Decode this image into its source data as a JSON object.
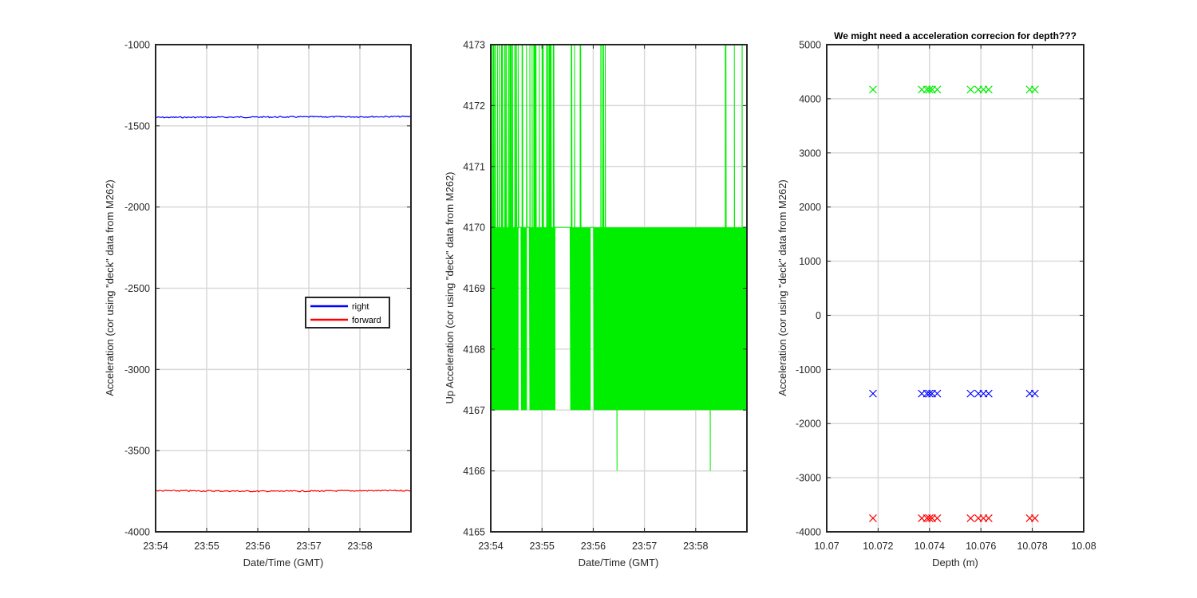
{
  "chart_data": [
    {
      "type": "line",
      "title": "",
      "xlabel": "Date/Time (GMT)",
      "ylabel": "Acceleration (cor using \"deck\" data from M262)",
      "x_ticks": [
        "23:54",
        "23:55",
        "23:56",
        "23:57",
        "23:58"
      ],
      "xlim": [
        "23:54",
        "23:59"
      ],
      "ylim": [
        -4000,
        -1000
      ],
      "y_ticks": [
        -4000,
        -3500,
        -3000,
        -2500,
        -2000,
        -1500,
        -1000
      ],
      "grid": true,
      "legend": {
        "placement": "center-right",
        "entries": [
          "right",
          "forward"
        ]
      },
      "series": [
        {
          "name": "right",
          "color": "#0000ff",
          "x": [
            "23:54",
            "23:55",
            "23:56",
            "23:57",
            "23:58",
            "23:59"
          ],
          "values": [
            -1448,
            -1447,
            -1446,
            -1445,
            -1444,
            -1443
          ]
        },
        {
          "name": "forward",
          "color": "#ff0000",
          "x": [
            "23:54",
            "23:55",
            "23:56",
            "23:57",
            "23:58",
            "23:59"
          ],
          "values": [
            -3747,
            -3748,
            -3750,
            -3749,
            -3747,
            -3746
          ]
        }
      ]
    },
    {
      "type": "line",
      "title": "",
      "xlabel": "Date/Time (GMT)",
      "ylabel": "Up Acceleration (cor using \"deck\" data from M262)",
      "x_ticks": [
        "23:54",
        "23:55",
        "23:56",
        "23:57",
        "23:58"
      ],
      "xlim": [
        "23:54",
        "23:59"
      ],
      "ylim": [
        4165,
        4173
      ],
      "y_ticks": [
        4165,
        4166,
        4167,
        4168,
        4169,
        4170,
        4171,
        4172,
        4173
      ],
      "grid": true,
      "series": [
        {
          "color": "#00ee00",
          "levels": [
            4167,
            4170
          ],
          "occasional_high": 4173,
          "occasional_low": 4166
        }
      ]
    },
    {
      "type": "scatter",
      "title": "We might need a acceleration correcion for depth???",
      "xlabel": "Depth (m)",
      "ylabel": "Acceleration (cor using \"deck\" data from M262)",
      "x_ticks": [
        10.07,
        10.072,
        10.074,
        10.076,
        10.078,
        10.08
      ],
      "xlim": [
        10.07,
        10.08
      ],
      "ylim": [
        -4000,
        5000
      ],
      "y_ticks": [
        -4000,
        -3000,
        -2000,
        -1000,
        0,
        1000,
        2000,
        3000,
        4000,
        5000
      ],
      "grid": true,
      "marker": "x",
      "x": [
        10.0718,
        10.0737,
        10.0739,
        10.074,
        10.0741,
        10.0743,
        10.0756,
        10.0759,
        10.0761,
        10.0763,
        10.0779,
        10.0781
      ],
      "series": [
        {
          "color": "#00ee00",
          "values": [
            4170,
            4170,
            4170,
            4170,
            4170,
            4170,
            4170,
            4170,
            4170,
            4170,
            4170,
            4170
          ]
        },
        {
          "color": "#0000ff",
          "values": [
            -1446,
            -1446,
            -1446,
            -1446,
            -1446,
            -1446,
            -1446,
            -1446,
            -1446,
            -1446,
            -1446,
            -1446
          ]
        },
        {
          "color": "#ff0000",
          "values": [
            -3748,
            -3748,
            -3748,
            -3748,
            -3748,
            -3748,
            -3748,
            -3748,
            -3748,
            -3748,
            -3748,
            -3748
          ]
        }
      ]
    }
  ]
}
